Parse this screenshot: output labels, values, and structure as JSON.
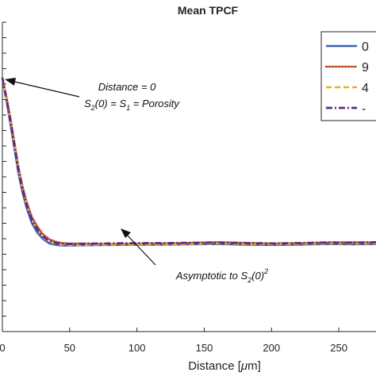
{
  "chart_data": {
    "type": "line",
    "title": "Mean TPCF",
    "xlabel_main": "Distance [",
    "xlabel_unit_greek": "μ",
    "xlabel_unit_rest": "m]",
    "xlim": [
      0,
      280
    ],
    "ylim": [
      0,
      1
    ],
    "x_ticks": [
      0,
      50,
      100,
      150,
      200,
      250
    ],
    "x_tick_labels": [
      "0",
      "50",
      "100",
      "150",
      "200",
      "250"
    ],
    "grid": false,
    "legend_position": "top-right",
    "legend_labels": [
      "0",
      "9",
      "4",
      "-"
    ],
    "series": [
      {
        "color": "#3a5fb5",
        "style": "solid",
        "x": [
          0,
          3,
          6,
          9,
          12,
          15,
          18,
          22,
          26,
          30,
          35,
          40,
          45,
          50,
          60,
          80,
          100,
          120,
          140,
          160,
          180,
          200,
          220,
          240,
          260,
          280
        ],
        "y": [
          0.82,
          0.75,
          0.67,
          0.59,
          0.51,
          0.45,
          0.4,
          0.35,
          0.32,
          0.3,
          0.285,
          0.28,
          0.278,
          0.278,
          0.279,
          0.28,
          0.281,
          0.281,
          0.282,
          0.283,
          0.281,
          0.28,
          0.281,
          0.283,
          0.282,
          0.283
        ]
      },
      {
        "color": "#c0502a",
        "style": "dotted",
        "x": [
          0,
          3,
          6,
          9,
          12,
          15,
          18,
          22,
          26,
          30,
          35,
          40,
          45,
          50,
          60,
          80,
          100,
          120,
          140,
          160,
          180,
          200,
          220,
          240,
          260,
          280
        ],
        "y": [
          0.82,
          0.76,
          0.69,
          0.61,
          0.53,
          0.47,
          0.42,
          0.37,
          0.34,
          0.315,
          0.298,
          0.29,
          0.286,
          0.285,
          0.284,
          0.283,
          0.284,
          0.285,
          0.287,
          0.289,
          0.287,
          0.285,
          0.286,
          0.288,
          0.289,
          0.288
        ]
      },
      {
        "color": "#e0b030",
        "style": "dashed",
        "x": [
          0,
          3,
          6,
          9,
          12,
          15,
          18,
          22,
          26,
          30,
          35,
          40,
          45,
          50,
          60,
          80,
          100,
          120,
          140,
          160,
          180,
          200,
          220,
          240,
          260,
          280
        ],
        "y": [
          0.82,
          0.75,
          0.68,
          0.6,
          0.52,
          0.46,
          0.41,
          0.36,
          0.33,
          0.305,
          0.29,
          0.283,
          0.28,
          0.279,
          0.28,
          0.281,
          0.282,
          0.282,
          0.283,
          0.285,
          0.283,
          0.282,
          0.283,
          0.285,
          0.284,
          0.285
        ]
      },
      {
        "color": "#5a2a8a",
        "style": "dashdot",
        "x": [
          0,
          3,
          6,
          9,
          12,
          15,
          18,
          22,
          26,
          30,
          35,
          40,
          45,
          50,
          60,
          80,
          100,
          120,
          140,
          160,
          180,
          200,
          220,
          240,
          260,
          280
        ],
        "y": [
          0.82,
          0.75,
          0.68,
          0.6,
          0.52,
          0.46,
          0.41,
          0.36,
          0.33,
          0.308,
          0.292,
          0.286,
          0.284,
          0.283,
          0.284,
          0.285,
          0.286,
          0.286,
          0.287,
          0.288,
          0.286,
          0.285,
          0.286,
          0.288,
          0.287,
          0.289
        ]
      }
    ],
    "annotations": [
      {
        "line1": "Distance = 0",
        "line2_parts": [
          "S",
          "2",
          "(0) = S",
          "1",
          " = Porosity"
        ],
        "point": [
          0,
          0.82
        ]
      },
      {
        "text_parts": [
          "Asymptotic to S",
          "2",
          "(0)",
          "2"
        ],
        "point": [
          88,
          0.28
        ]
      }
    ]
  }
}
